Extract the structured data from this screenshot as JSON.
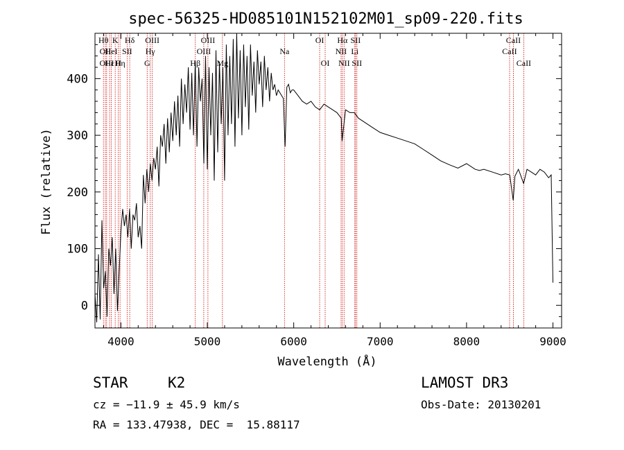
{
  "chart_data": {
    "type": "line",
    "title": "spec-56325-HD085101N152102M01_sp09-220.fits",
    "xlabel": "Wavelength (Å)",
    "ylabel": "Flux (relative)",
    "xlim": [
      3700,
      9100
    ],
    "ylim": [
      -40,
      480
    ],
    "xticks": [
      4000,
      5000,
      6000,
      7000,
      8000,
      9000
    ],
    "yticks": [
      0,
      100,
      200,
      300,
      400
    ],
    "grid": false,
    "series": [
      {
        "x": [
          3700,
          3720,
          3740,
          3760,
          3780,
          3800,
          3820,
          3840,
          3860,
          3880,
          3900,
          3920,
          3940,
          3960,
          3980,
          4000,
          4020,
          4040,
          4060,
          4080,
          4100,
          4120,
          4140,
          4160,
          4180,
          4200,
          4220,
          4240,
          4260,
          4280,
          4300,
          4320,
          4340,
          4360,
          4380,
          4400,
          4420,
          4440,
          4460,
          4480,
          4500,
          4520,
          4540,
          4560,
          4580,
          4600,
          4620,
          4640,
          4660,
          4680,
          4700,
          4720,
          4740,
          4760,
          4780,
          4800,
          4820,
          4840,
          4860,
          4880,
          4900,
          4920,
          4940,
          4960,
          4980,
          5000,
          5020,
          5040,
          5060,
          5080,
          5100,
          5120,
          5140,
          5160,
          5180,
          5200,
          5220,
          5240,
          5260,
          5280,
          5300,
          5320,
          5340,
          5360,
          5380,
          5400,
          5420,
          5440,
          5460,
          5480,
          5500,
          5520,
          5540,
          5560,
          5580,
          5600,
          5620,
          5640,
          5660,
          5680,
          5700,
          5720,
          5740,
          5760,
          5780,
          5800,
          5820,
          5840,
          5860,
          5880,
          5900,
          5920,
          5940,
          5960,
          5980,
          6000,
          6050,
          6100,
          6150,
          6200,
          6250,
          6300,
          6350,
          6400,
          6450,
          6500,
          6550,
          6560,
          6600,
          6650,
          6700,
          6750,
          6800,
          6900,
          7000,
          7100,
          7200,
          7300,
          7400,
          7500,
          7600,
          7700,
          7800,
          7900,
          8000,
          8100,
          8150,
          8200,
          8300,
          8400,
          8450,
          8500,
          8540,
          8560,
          8600,
          8620,
          8660,
          8700,
          8750,
          8800,
          8850,
          8900,
          8950,
          8980,
          9000
        ],
        "values": [
          20,
          -30,
          90,
          -25,
          150,
          30,
          60,
          -20,
          100,
          70,
          120,
          20,
          100,
          -10,
          60,
          130,
          170,
          140,
          160,
          120,
          170,
          100,
          160,
          150,
          180,
          120,
          140,
          100,
          230,
          180,
          240,
          200,
          250,
          220,
          260,
          240,
          280,
          210,
          300,
          280,
          320,
          250,
          330,
          270,
          340,
          290,
          360,
          300,
          370,
          280,
          400,
          320,
          390,
          340,
          420,
          310,
          410,
          300,
          430,
          280,
          420,
          360,
          400,
          250,
          440,
          240,
          420,
          300,
          410,
          220,
          450,
          270,
          430,
          320,
          420,
          220,
          460,
          300,
          440,
          320,
          470,
          280,
          480,
          330,
          450,
          300,
          460,
          350,
          440,
          310,
          460,
          370,
          430,
          340,
          450,
          390,
          430,
          350,
          440,
          380,
          420,
          360,
          410,
          380,
          390,
          370,
          380,
          375,
          370,
          365,
          280,
          385,
          390,
          375,
          380,
          380,
          370,
          360,
          355,
          360,
          350,
          345,
          355,
          350,
          345,
          340,
          330,
          290,
          345,
          340,
          340,
          330,
          325,
          315,
          305,
          300,
          295,
          290,
          285,
          275,
          265,
          255,
          248,
          242,
          250,
          240,
          238,
          240,
          235,
          230,
          232,
          230,
          185,
          228,
          240,
          232,
          215,
          240,
          235,
          230,
          240,
          235,
          225,
          230,
          40
        ]
      }
    ],
    "lines": [
      {
        "x": 3798,
        "label": "Hθ",
        "row": 1
      },
      {
        "x": 3820,
        "label": "OII",
        "row": 2
      },
      {
        "x": 3835,
        "label": "OIII",
        "row": 3
      },
      {
        "x": 3869,
        "label": "Hε",
        "row": 3
      },
      {
        "x": 3889,
        "label": "HeI",
        "row": 2
      },
      {
        "x": 3934,
        "label": "K",
        "row": 1
      },
      {
        "x": 3970,
        "label": "H",
        "row": 3
      },
      {
        "x": 3990,
        "label": "Hη",
        "row": 3
      },
      {
        "x": 4072,
        "label": "SII",
        "row": 2
      },
      {
        "x": 4102,
        "label": "Hδ",
        "row": 1
      },
      {
        "x": 4304,
        "label": "G",
        "row": 3
      },
      {
        "x": 4340,
        "label": "Hγ",
        "row": 2
      },
      {
        "x": 4363,
        "label": "OIII",
        "row": 1
      },
      {
        "x": 4861,
        "label": "Hβ",
        "row": 3
      },
      {
        "x": 4959,
        "label": "OIII",
        "row": 2
      },
      {
        "x": 5007,
        "label": "OIII",
        "row": 1
      },
      {
        "x": 5175,
        "label": "Mg",
        "row": 3
      },
      {
        "x": 5893,
        "label": "Na",
        "row": 2
      },
      {
        "x": 6300,
        "label": "OI",
        "row": 1
      },
      {
        "x": 6364,
        "label": "OI",
        "row": 3
      },
      {
        "x": 6548,
        "label": "NII",
        "row": 2
      },
      {
        "x": 6563,
        "label": "Hα",
        "row": 1
      },
      {
        "x": 6583,
        "label": "NII",
        "row": 3
      },
      {
        "x": 6707,
        "label": "Li",
        "row": 2
      },
      {
        "x": 6716,
        "label": "SII",
        "row": 1
      },
      {
        "x": 6731,
        "label": "SII",
        "row": 3
      },
      {
        "x": 8498,
        "label": "CaII",
        "row": 2
      },
      {
        "x": 8542,
        "label": "CaII",
        "row": 1
      },
      {
        "x": 8662,
        "label": "CaII",
        "row": 3
      }
    ]
  },
  "info": {
    "class_label": "STAR",
    "subclass": "K2",
    "survey": "LAMOST DR3",
    "cz": "cz = −11.9 ± 45.9 km/s",
    "obs_date": "Obs-Date: 20130201",
    "radec": "RA = 133.47938, DEC =  15.88117"
  },
  "colors": {
    "line": "#000000",
    "marker": "#cc0000"
  }
}
